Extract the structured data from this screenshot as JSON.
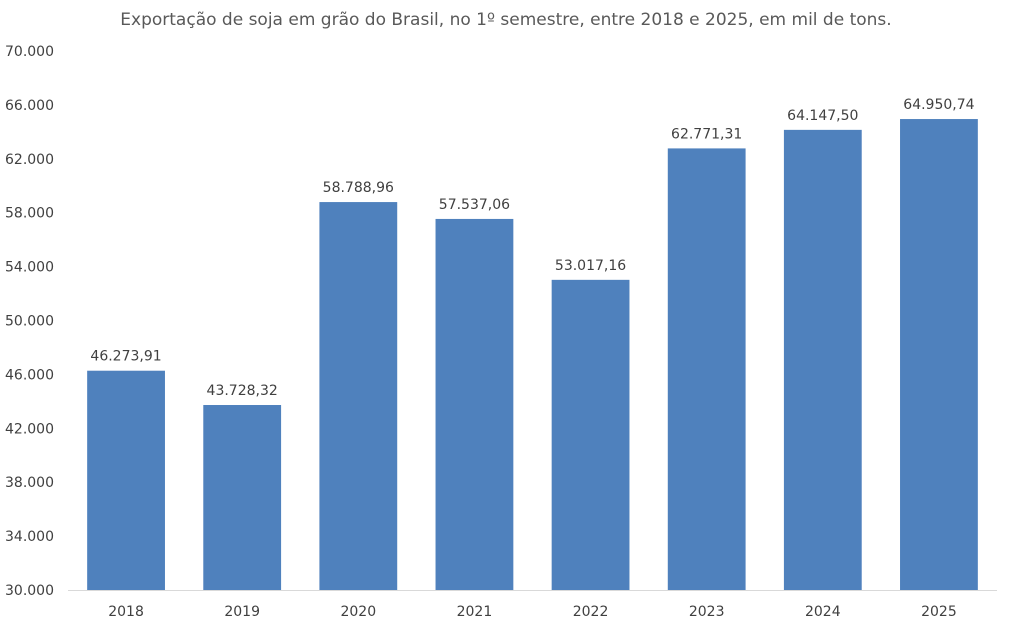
{
  "chart_data": {
    "type": "bar",
    "title": "Exportação de soja em grão do Brasil, no 1º semestre, entre 2018 e 2025, em mil de tons.",
    "xlabel": "",
    "ylabel": "",
    "categories": [
      "2018",
      "2019",
      "2020",
      "2021",
      "2022",
      "2023",
      "2024",
      "2025"
    ],
    "values": [
      46273.91,
      43728.32,
      58788.96,
      57537.06,
      53017.16,
      62771.31,
      64147.5,
      64950.74
    ],
    "data_labels": [
      "46.273,91",
      "43.728,32",
      "58.788,96",
      "57.537,06",
      "53.017,16",
      "62.771,31",
      "64.147,50",
      "64.950,74"
    ],
    "ylim": [
      30000,
      70000
    ],
    "y_ticks": [
      30000,
      34000,
      38000,
      42000,
      46000,
      50000,
      54000,
      58000,
      62000,
      66000,
      70000
    ],
    "y_tick_labels": [
      "30.000",
      "34.000",
      "38.000",
      "42.000",
      "46.000",
      "50.000",
      "54.000",
      "58.000",
      "62.000",
      "66.000",
      "70.000"
    ],
    "grid": false,
    "legend": "none",
    "colors": {
      "bar": "#4f81bd",
      "axis": "#d9d9d9",
      "text": "#404040",
      "title": "#595959"
    }
  }
}
